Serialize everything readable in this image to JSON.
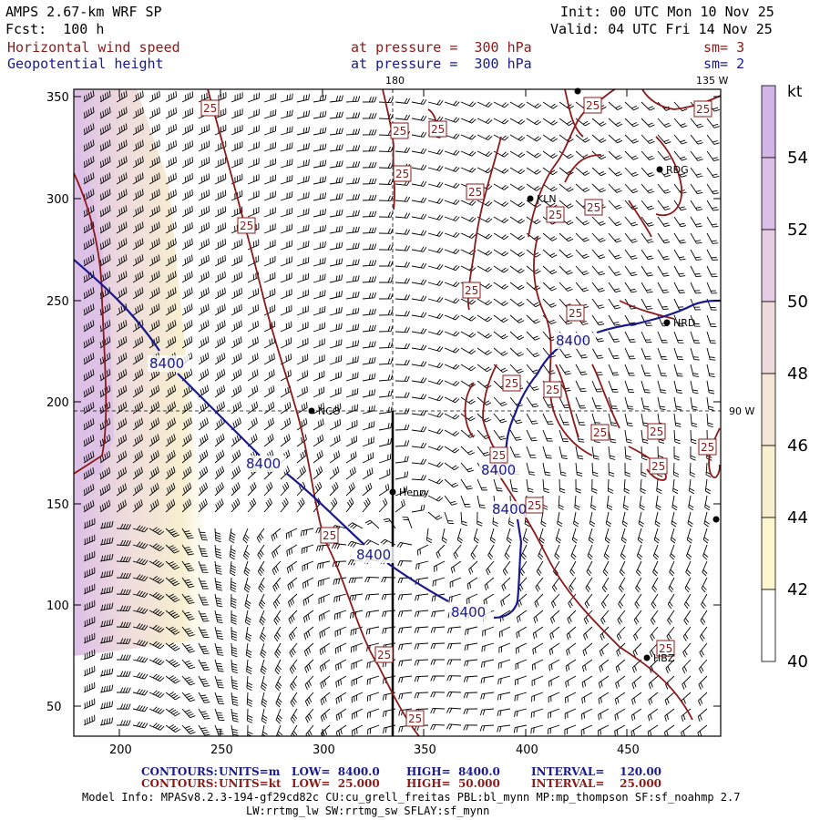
{
  "header": {
    "model": "AMPS 2.67-km WRF SP",
    "forecast": "Fcst:  100 h",
    "init": "Init: 00 UTC Mon 10 Nov 25",
    "valid": "Valid: 04 UTC Fri 14 Nov 25",
    "field1": {
      "name": "Horizontal wind speed",
      "level": "at pressure =  300 hPa",
      "smooth": "sm= 3"
    },
    "field2": {
      "name": "Geopotential height",
      "level": "at pressure =  300 hPa",
      "smooth": "sm= 2"
    }
  },
  "map": {
    "x_ticks": [
      "200",
      "250",
      "300",
      "350",
      "400",
      "450"
    ],
    "y_ticks": [
      "350",
      "300",
      "250",
      "200",
      "150",
      "100",
      "50"
    ],
    "meridian_labels": {
      "top_180": "180",
      "top_135w": "135 W",
      "right_90w": "90 W"
    },
    "stations": [
      {
        "id": "NCO",
        "label": "NCO"
      },
      {
        "id": "Henry",
        "label": "Henry"
      },
      {
        "id": "KLN",
        "label": "KLN"
      },
      {
        "id": "RDG",
        "label": "RDG"
      },
      {
        "id": "HRD",
        "label": "HRD"
      },
      {
        "id": "HBZ",
        "label": "HBZ"
      }
    ],
    "height_contour_label": "8400",
    "speed_contour_label": "25"
  },
  "colorbar": {
    "unit": "kt",
    "labels": [
      "54",
      "52",
      "50",
      "48",
      "46",
      "44",
      "42",
      "40"
    ],
    "colors": [
      "#d4b5e8",
      "#dcbfe6",
      "#e6cde3",
      "#eedbdd",
      "#f4e6d6",
      "#f8efd0",
      "#fbf6cd",
      "#ffffff"
    ]
  },
  "footer": {
    "contours1": {
      "title": "CONTOURS:",
      "units": "UNITS=m",
      "low": "LOW=  8400.0",
      "high": "HIGH=  8400.0",
      "interval": "INTERVAL=    120.00"
    },
    "contours2": {
      "title": "CONTOURS:",
      "units": "UNITS=kt",
      "low": "LOW=  25.000",
      "high": "HIGH=  50.000",
      "interval": "INTERVAL=    25.000"
    },
    "model_info": "Model Info: MPASv8.2.3-194-gf29cd82c CU:cu_grell_freitas PBL:bl_mynn MP:mp_thompson SF:sf_noahmp 2.7",
    "model_info2": "LW:rrtmg_lw SW:rrtmg_sw SFLAY:sf_mynn"
  }
}
